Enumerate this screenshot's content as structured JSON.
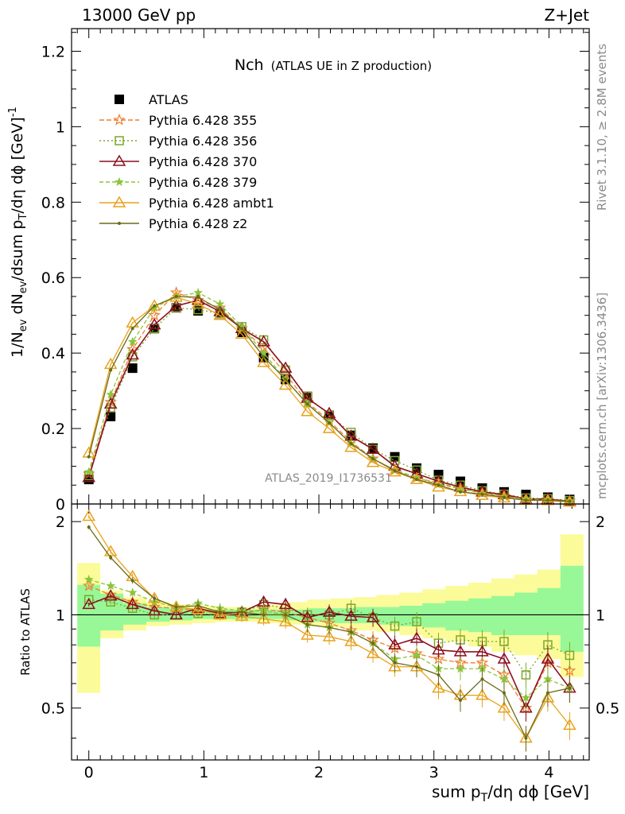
{
  "header": {
    "left": "13000 GeV pp",
    "right": "Z+Jet"
  },
  "side": {
    "rivet": "Rivet 3.1.10, ≥ 2.8M events",
    "mcplots": "mcplots.cern.ch [arXiv:1306.3436]"
  },
  "colors": {
    "data": "#000000",
    "p355": "#ee7f2f",
    "p356": "#7ea62a",
    "p370": "#8c1020",
    "p379": "#8cc43c",
    "ambt1": "#e8a21c",
    "z2": "#6b6b16",
    "band_inner": "#98f898",
    "band_outer": "#fbfb9a"
  },
  "chart_data": [
    {
      "type": "line",
      "panel": "main",
      "title": "Nch",
      "subtitle": "(ATLAS UE in Z production)",
      "watermark": "ATLAS_2019_I1736531",
      "xlabel": "sum p_T/dη dϕ [GeV]",
      "ylabel": "1/N_ev dN_ev/dsum p_T/dη dϕ [GeV]^-1",
      "xlim": [
        -0.15,
        4.35
      ],
      "ylim": [
        0,
        1.26
      ],
      "x_ticks": [
        "0",
        "1",
        "2",
        "3",
        "4"
      ],
      "y_ticks": [
        "0",
        "0.2",
        "0.4",
        "0.6",
        "0.8",
        "1",
        "1.2"
      ],
      "x": [
        0.0,
        0.19,
        0.38,
        0.57,
        0.76,
        0.95,
        1.14,
        1.33,
        1.52,
        1.71,
        1.9,
        2.09,
        2.28,
        2.47,
        2.66,
        2.85,
        3.04,
        3.23,
        3.42,
        3.61,
        3.8,
        3.99,
        4.18
      ],
      "legend": [
        "ATLAS",
        "Pythia 6.428 355",
        "Pythia 6.428 356",
        "Pythia 6.428 370",
        "Pythia 6.428 379",
        "Pythia 6.428 ambt1",
        "Pythia 6.428 z2"
      ],
      "series": [
        {
          "name": "ATLAS",
          "key": "data",
          "marker": "square",
          "dash": "",
          "values": [
            0.065,
            0.232,
            0.36,
            0.465,
            0.52,
            0.512,
            0.505,
            0.455,
            0.388,
            0.33,
            0.285,
            0.235,
            0.182,
            0.148,
            0.125,
            0.095,
            0.078,
            0.06,
            0.042,
            0.032,
            0.025,
            0.018,
            0.012
          ]
        },
        {
          "name": "Pythia 6.428 355",
          "key": "p355",
          "marker": "star",
          "dash": "6,3",
          "values": [
            0.08,
            0.27,
            0.41,
            0.5,
            0.56,
            0.54,
            0.52,
            0.465,
            0.415,
            0.345,
            0.27,
            0.22,
            0.165,
            0.12,
            0.09,
            0.07,
            0.055,
            0.042,
            0.03,
            0.022,
            0.013,
            0.012,
            0.008
          ]
        },
        {
          "name": "Pythia 6.428 356",
          "key": "p356",
          "marker": "open-square",
          "dash": "2,3",
          "values": [
            0.075,
            0.255,
            0.39,
            0.465,
            0.52,
            0.515,
            0.505,
            0.47,
            0.435,
            0.355,
            0.285,
            0.235,
            0.19,
            0.145,
            0.115,
            0.09,
            0.063,
            0.05,
            0.035,
            0.026,
            0.016,
            0.014,
            0.009
          ]
        },
        {
          "name": "Pythia 6.428 370",
          "key": "p370",
          "marker": "open-triangle",
          "dash": "",
          "values": [
            0.07,
            0.265,
            0.395,
            0.475,
            0.525,
            0.54,
            0.51,
            0.465,
            0.43,
            0.36,
            0.28,
            0.24,
            0.18,
            0.145,
            0.1,
            0.08,
            0.06,
            0.045,
            0.032,
            0.025,
            0.013,
            0.013,
            0.007
          ]
        },
        {
          "name": "Pythia 6.428 379",
          "key": "p379",
          "marker": "small-star",
          "dash": "5,3",
          "values": [
            0.085,
            0.29,
            0.43,
            0.52,
            0.55,
            0.56,
            0.53,
            0.47,
            0.4,
            0.33,
            0.265,
            0.215,
            0.16,
            0.12,
            0.09,
            0.07,
            0.052,
            0.04,
            0.028,
            0.02,
            0.013,
            0.011,
            0.007
          ]
        },
        {
          "name": "Pythia 6.428 ambt1",
          "key": "ambt1",
          "marker": "open-triangle",
          "dash": "",
          "values": [
            0.135,
            0.37,
            0.48,
            0.525,
            0.548,
            0.53,
            0.5,
            0.45,
            0.375,
            0.315,
            0.245,
            0.2,
            0.15,
            0.11,
            0.085,
            0.065,
            0.045,
            0.033,
            0.023,
            0.016,
            0.01,
            0.009,
            0.005
          ]
        },
        {
          "name": "Pythia 6.428 z2",
          "key": "z2",
          "marker": "dot",
          "dash": "",
          "values": [
            0.125,
            0.355,
            0.465,
            0.525,
            0.55,
            0.548,
            0.515,
            0.465,
            0.39,
            0.33,
            0.265,
            0.215,
            0.16,
            0.12,
            0.088,
            0.065,
            0.05,
            0.032,
            0.026,
            0.018,
            0.01,
            0.01,
            0.007
          ]
        }
      ]
    },
    {
      "type": "line",
      "panel": "ratio",
      "ylabel": "Ratio to ATLAS",
      "xlim": [
        -0.15,
        4.35
      ],
      "ylim": [
        0.34,
        2.28
      ],
      "y_ticks": [
        "0.5",
        "1",
        "2"
      ],
      "reference": 1,
      "band_x": [
        -0.1,
        0.1,
        0.3,
        0.5,
        0.7,
        0.9,
        1.1,
        1.3,
        1.5,
        1.7,
        1.9,
        2.1,
        2.3,
        2.5,
        2.7,
        2.9,
        3.1,
        3.3,
        3.5,
        3.7,
        3.9,
        4.1,
        4.3
      ],
      "band_inner_lo": [
        0.79,
        0.89,
        0.93,
        0.95,
        0.96,
        0.97,
        0.97,
        0.97,
        0.97,
        0.96,
        0.95,
        0.94,
        0.94,
        0.93,
        0.92,
        0.91,
        0.89,
        0.88,
        0.86,
        0.86,
        0.86,
        0.76
      ],
      "band_inner_hi": [
        1.25,
        1.17,
        1.09,
        1.06,
        1.05,
        1.04,
        1.04,
        1.04,
        1.04,
        1.04,
        1.05,
        1.05,
        1.06,
        1.06,
        1.07,
        1.09,
        1.11,
        1.13,
        1.15,
        1.18,
        1.22,
        1.44
      ],
      "band_outer_lo": [
        0.56,
        0.84,
        0.89,
        0.92,
        0.93,
        0.94,
        0.95,
        0.95,
        0.94,
        0.93,
        0.92,
        0.91,
        0.89,
        0.88,
        0.86,
        0.84,
        0.82,
        0.79,
        0.76,
        0.74,
        0.72,
        0.63
      ],
      "band_outer_hi": [
        1.47,
        1.2,
        1.14,
        1.1,
        1.08,
        1.07,
        1.06,
        1.06,
        1.08,
        1.1,
        1.12,
        1.13,
        1.14,
        1.16,
        1.18,
        1.21,
        1.24,
        1.27,
        1.31,
        1.35,
        1.4,
        1.82
      ],
      "series": [
        {
          "name": "Pythia 6.428 355",
          "key": "p355",
          "values": [
            1.24,
            1.16,
            1.1,
            1.06,
            1.05,
            1.03,
            1.02,
            1.01,
            1.04,
            1.02,
            0.98,
            0.94,
            0.89,
            0.83,
            0.78,
            0.75,
            0.72,
            0.7,
            0.7,
            0.64,
            0.5,
            0.7,
            0.66
          ]
        },
        {
          "name": "Pythia 6.428 356",
          "key": "p356",
          "values": [
            1.12,
            1.1,
            1.05,
            1.0,
            1.0,
            1.01,
            1.0,
            1.02,
            1.08,
            1.05,
            1.0,
            1.0,
            1.05,
            0.98,
            0.92,
            0.95,
            0.81,
            0.83,
            0.82,
            0.82,
            0.64,
            0.8,
            0.74
          ]
        },
        {
          "name": "Pythia 6.428 370",
          "key": "p370",
          "values": [
            1.08,
            1.15,
            1.08,
            1.03,
            1.0,
            1.05,
            1.01,
            1.02,
            1.1,
            1.08,
            0.98,
            1.02,
            0.99,
            0.98,
            0.8,
            0.84,
            0.77,
            0.76,
            0.76,
            0.72,
            0.5,
            0.72,
            0.58
          ]
        },
        {
          "name": "Pythia 6.428 379",
          "key": "p379",
          "values": [
            1.3,
            1.24,
            1.18,
            1.1,
            1.06,
            1.09,
            1.05,
            1.03,
            1.03,
            1.0,
            0.93,
            0.91,
            0.88,
            0.81,
            0.72,
            0.74,
            0.67,
            0.67,
            0.67,
            0.62,
            0.54,
            0.62,
            0.58
          ]
        },
        {
          "name": "Pythia 6.428 ambt1",
          "key": "ambt1",
          "values": [
            2.08,
            1.6,
            1.33,
            1.13,
            1.06,
            1.04,
            1.0,
            0.99,
            0.97,
            0.95,
            0.86,
            0.85,
            0.82,
            0.75,
            0.68,
            0.68,
            0.58,
            0.55,
            0.55,
            0.5,
            0.4,
            0.54,
            0.44
          ]
        },
        {
          "name": "Pythia 6.428 z2",
          "key": "z2",
          "values": [
            1.92,
            1.53,
            1.29,
            1.13,
            1.06,
            1.07,
            1.02,
            1.02,
            1.0,
            1.0,
            0.93,
            0.91,
            0.88,
            0.81,
            0.7,
            0.68,
            0.64,
            0.53,
            0.62,
            0.56,
            0.4,
            0.56,
            0.58
          ]
        }
      ]
    }
  ]
}
